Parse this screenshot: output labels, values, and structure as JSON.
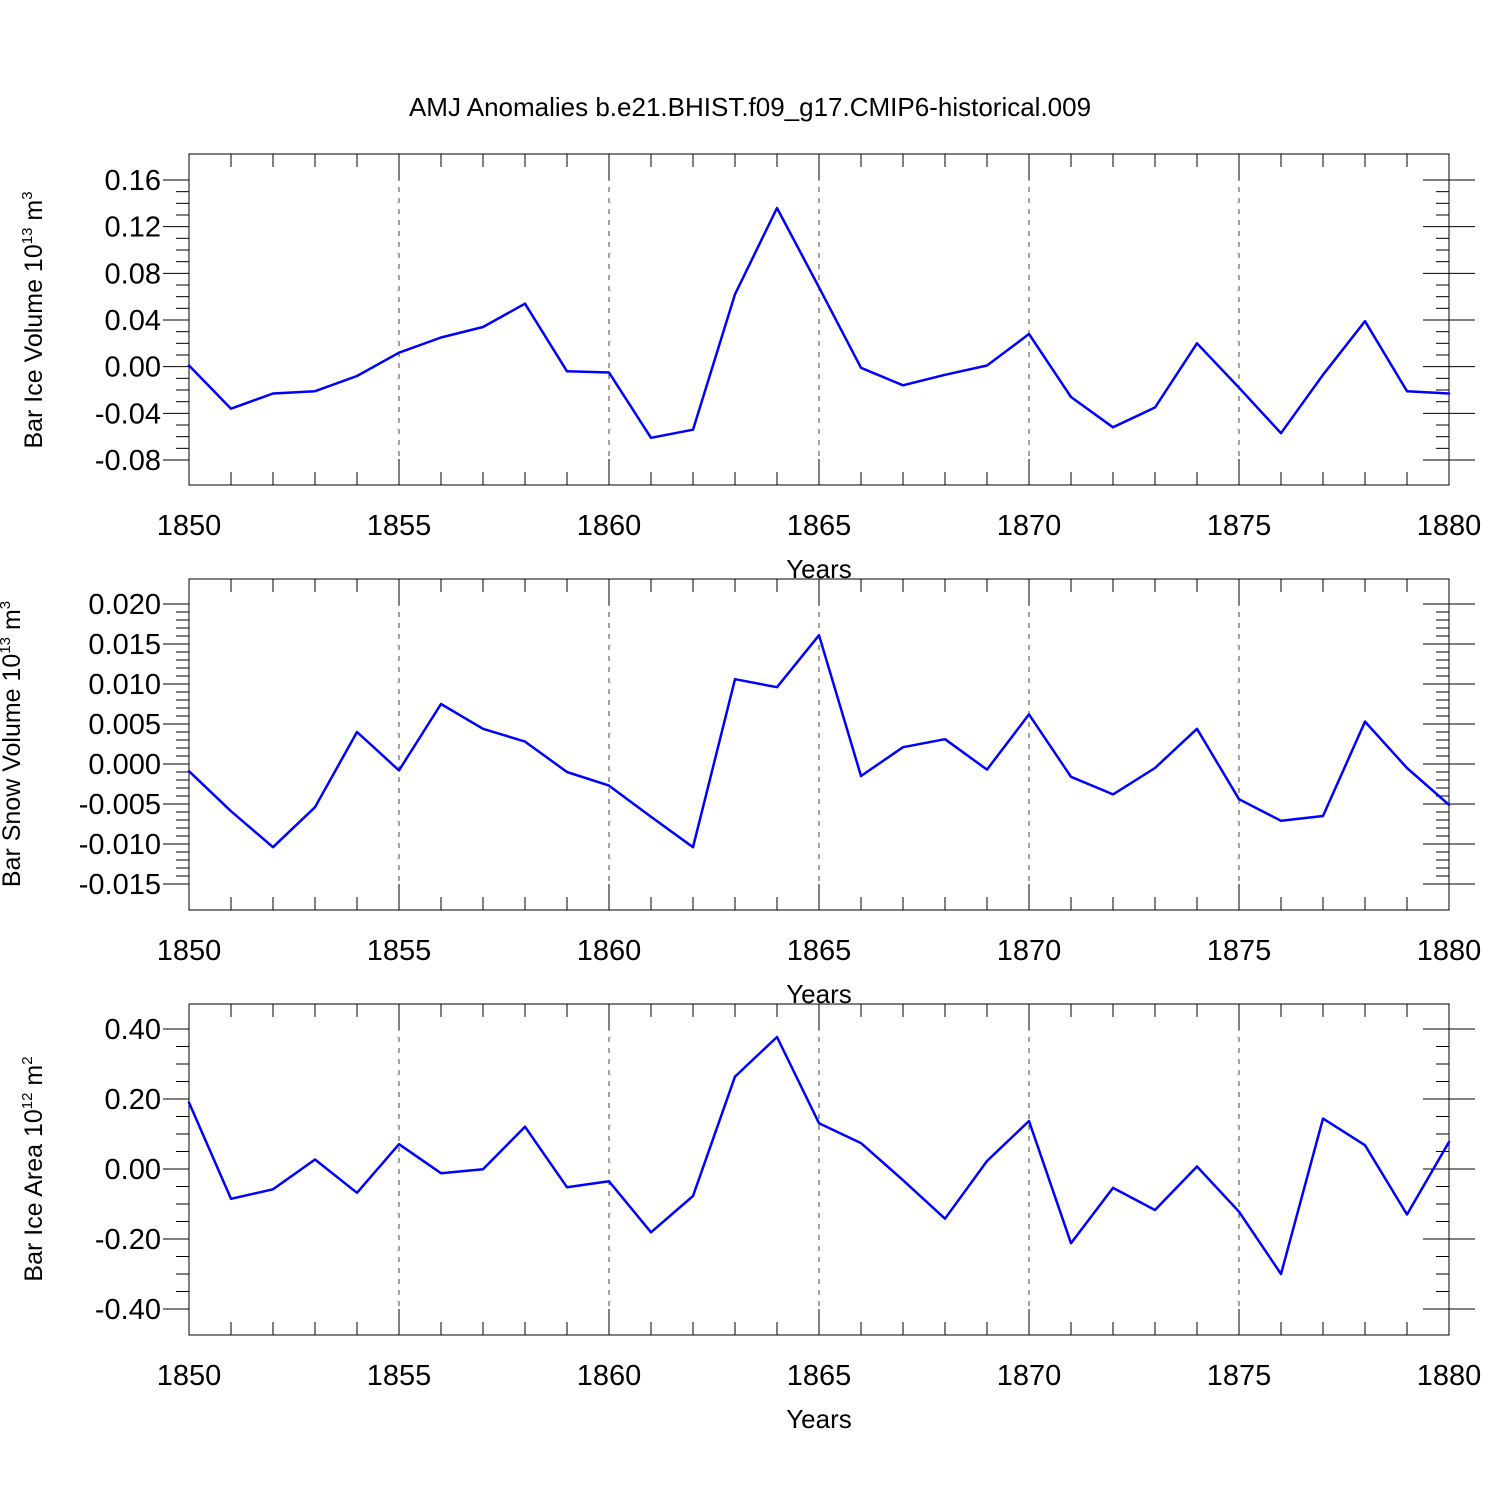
{
  "figure": {
    "title": "AMJ Anomalies b.e21.BHIST.f09_g17.CMIP6-historical.009"
  },
  "chart_data": [
    {
      "type": "line",
      "ylabel": "Bar Ice Volume 10",
      "ylabel_exp": "13",
      "ylabel_unit": " m",
      "ylabel_unit_exp": "3",
      "xlabel": "Years",
      "xlim": [
        1850,
        1880
      ],
      "ylim": [
        -0.08,
        0.16
      ],
      "x_ticks": [
        "1850",
        "1855",
        "1860",
        "1865",
        "1870",
        "1875",
        "1880"
      ],
      "y_ticks": [
        "0.16",
        "0.12",
        "0.08",
        "0.04",
        "0.00",
        "-0.04",
        "-0.08"
      ],
      "grid": "dashed vertical at major x ticks",
      "series": [
        {
          "color": "#0000ff",
          "x": [
            1850,
            1851,
            1852,
            1853,
            1854,
            1855,
            1856,
            1857,
            1858,
            1859,
            1860,
            1861,
            1862,
            1863,
            1864,
            1865,
            1866,
            1867,
            1868,
            1869,
            1870,
            1871,
            1872,
            1873,
            1874,
            1875,
            1876,
            1877,
            1878,
            1879,
            1880
          ],
          "y": [
            0.001,
            -0.036,
            -0.023,
            -0.021,
            -0.008,
            0.012,
            0.025,
            0.034,
            0.054,
            -0.004,
            -0.005,
            -0.061,
            -0.054,
            0.062,
            0.136,
            0.068,
            -0.001,
            -0.016,
            -0.007,
            0.001,
            0.028,
            -0.026,
            -0.052,
            -0.035,
            0.02,
            -0.018,
            -0.057,
            -0.007,
            0.039,
            -0.021,
            -0.023
          ]
        }
      ]
    },
    {
      "type": "line",
      "ylabel": "Bar Snow Volume 10",
      "ylabel_exp": "13",
      "ylabel_unit": " m",
      "ylabel_unit_exp": "3",
      "xlabel": "Years",
      "xlim": [
        1850,
        1880
      ],
      "ylim": [
        -0.015,
        0.02
      ],
      "x_ticks": [
        "1850",
        "1855",
        "1860",
        "1865",
        "1870",
        "1875",
        "1880"
      ],
      "y_ticks": [
        "0.020",
        "0.015",
        "0.010",
        "0.005",
        "0.000",
        "-0.005",
        "-0.010",
        "-0.015"
      ],
      "grid": "dashed vertical at major x ticks",
      "series": [
        {
          "color": "#0000ff",
          "x": [
            1850,
            1851,
            1852,
            1853,
            1854,
            1855,
            1856,
            1857,
            1858,
            1859,
            1860,
            1861,
            1862,
            1863,
            1864,
            1865,
            1866,
            1867,
            1868,
            1869,
            1870,
            1871,
            1872,
            1873,
            1874,
            1875,
            1876,
            1877,
            1878,
            1879,
            1880
          ],
          "y": [
            -0.0009,
            -0.0059,
            -0.0104,
            -0.0054,
            0.004,
            -0.0008,
            0.0075,
            0.0044,
            0.0028,
            -0.001,
            -0.0027,
            -0.0066,
            -0.0104,
            0.0106,
            0.0096,
            0.0161,
            -0.0015,
            0.0021,
            0.0031,
            -0.0007,
            0.0062,
            -0.0016,
            -0.0038,
            -0.0005,
            0.0044,
            -0.0044,
            -0.0071,
            -0.0065,
            0.0053,
            -0.0005,
            -0.0051
          ]
        }
      ]
    },
    {
      "type": "line",
      "ylabel": "Bar Ice Area 10",
      "ylabel_exp": "12",
      "ylabel_unit": " m",
      "ylabel_unit_exp": "2",
      "xlabel": "Years",
      "xlim": [
        1850,
        1880
      ],
      "ylim": [
        -0.4,
        0.4
      ],
      "x_ticks": [
        "1850",
        "1855",
        "1860",
        "1865",
        "1870",
        "1875",
        "1880"
      ],
      "y_ticks": [
        "0.40",
        "0.20",
        "0.00",
        "-0.20",
        "-0.40"
      ],
      "grid": "dashed vertical at major x ticks",
      "series": [
        {
          "color": "#0000ff",
          "x": [
            1850,
            1851,
            1852,
            1853,
            1854,
            1855,
            1856,
            1857,
            1858,
            1859,
            1860,
            1861,
            1862,
            1863,
            1864,
            1865,
            1866,
            1867,
            1868,
            1869,
            1870,
            1871,
            1872,
            1873,
            1874,
            1875,
            1876,
            1877,
            1878,
            1879,
            1880
          ],
          "y": [
            0.19,
            -0.085,
            -0.058,
            0.027,
            -0.068,
            0.071,
            -0.012,
            -0.001,
            0.121,
            -0.052,
            -0.035,
            -0.181,
            -0.077,
            0.264,
            0.377,
            0.131,
            0.074,
            -0.032,
            -0.142,
            0.023,
            0.137,
            -0.212,
            -0.054,
            -0.117,
            0.007,
            -0.122,
            -0.3,
            0.144,
            0.068,
            -0.13,
            0.077
          ]
        }
      ]
    }
  ]
}
